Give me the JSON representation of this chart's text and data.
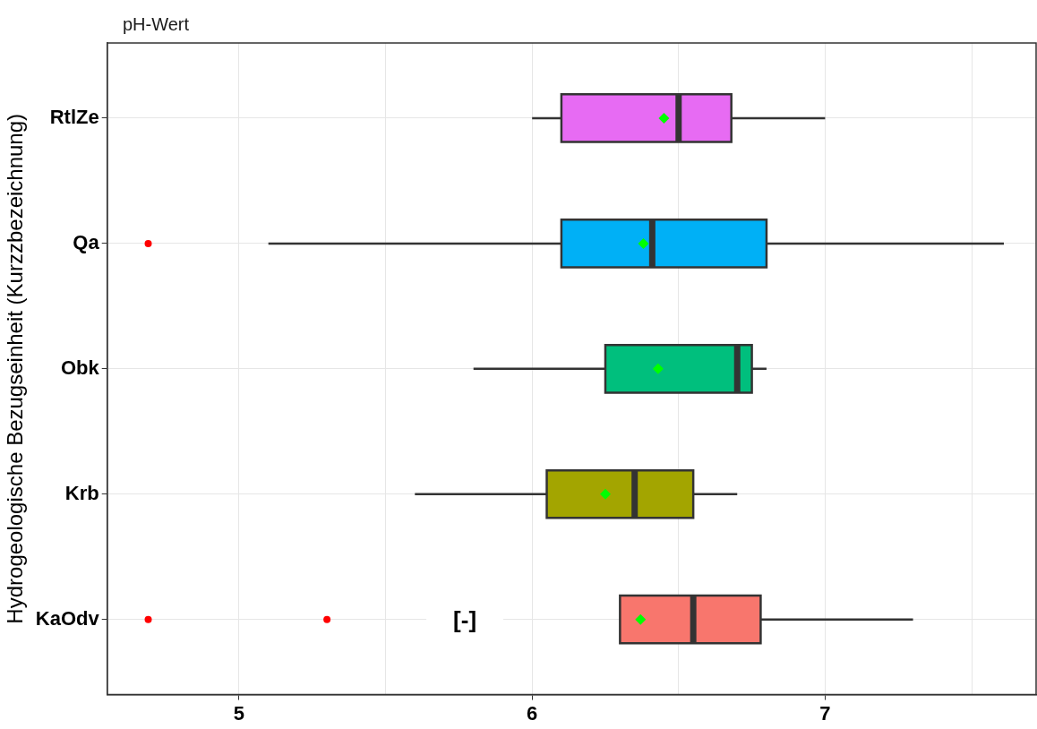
{
  "chart_data": {
    "type": "box",
    "title": "pH-Wert",
    "ylabel": "Hydrogeologische Bezugseinheit (Kurzzbezeichnung)",
    "orientation": "horizontal",
    "categories": [
      "RtlZe",
      "Qa",
      "Obk",
      "Krb",
      "KaOdv"
    ],
    "colors": [
      "#e76bf3",
      "#00b0f6",
      "#00bf7d",
      "#a3a500",
      "#f8766d"
    ],
    "boxes": [
      {
        "low": 6.0,
        "q1": 6.1,
        "median": 6.5,
        "q3": 6.68,
        "high": 7.0,
        "mean": 6.45
      },
      {
        "low": 5.1,
        "q1": 6.1,
        "median": 6.41,
        "q3": 6.8,
        "high": 7.61,
        "mean": 6.38,
        "outliers": [
          4.69
        ]
      },
      {
        "low": 5.8,
        "q1": 6.25,
        "median": 6.7,
        "q3": 6.75,
        "high": 6.8,
        "mean": 6.43
      },
      {
        "low": 5.6,
        "q1": 6.05,
        "median": 6.35,
        "q3": 6.55,
        "high": 6.7,
        "mean": 6.25
      },
      {
        "low": 6.3,
        "q1": 6.3,
        "median": 6.55,
        "q3": 6.78,
        "high": 7.3,
        "mean": 6.37,
        "outliers": [
          4.69,
          5.3
        ]
      }
    ],
    "xlim": [
      4.55,
      7.72
    ],
    "xticks": [
      5,
      {
        "value": 5.5,
        "label": null
      },
      6,
      {
        "value": 6.5,
        "label": null
      },
      7,
      {
        "value": 7.5,
        "label": null
      }
    ],
    "grid": true,
    "legend": false,
    "annotations": [
      "[-]"
    ]
  }
}
